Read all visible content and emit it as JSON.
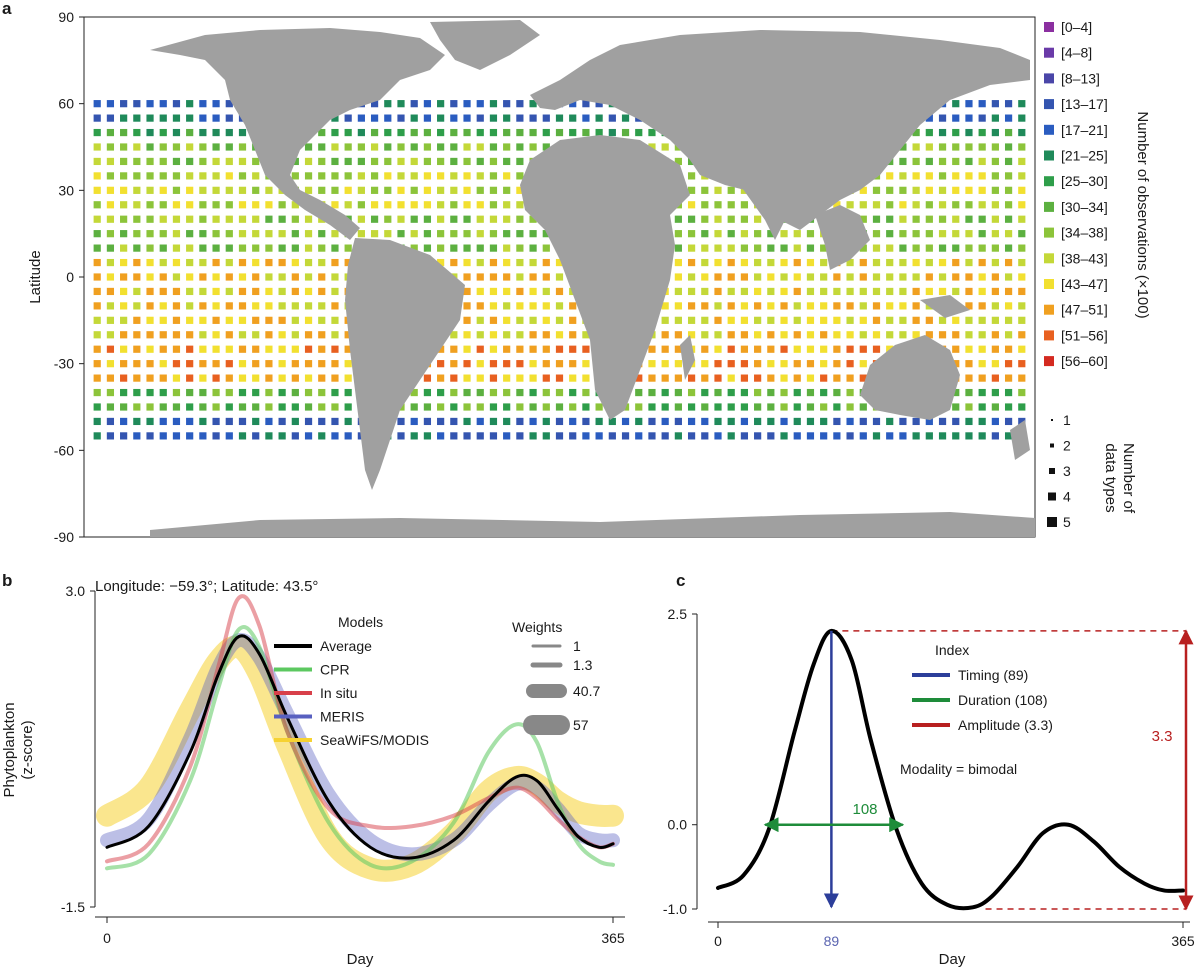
{
  "panel_a": {
    "letter": "a",
    "y_axis_label": "Latitude",
    "lat_ticks": [
      "90",
      "60",
      "30",
      "0",
      "-30",
      "-60",
      "-90"
    ],
    "obs_legend_title": "Number of observations (×100)",
    "obs_bins": [
      {
        "label": "[0–4]",
        "color": "#8b2fa0"
      },
      {
        "label": "[4–8]",
        "color": "#6a3aa8"
      },
      {
        "label": "[8–13]",
        "color": "#4a46a8"
      },
      {
        "label": "[13–17]",
        "color": "#3455b0"
      },
      {
        "label": "[17–21]",
        "color": "#2a5cc0"
      },
      {
        "label": "[21–25]",
        "color": "#1f8a5a"
      },
      {
        "label": "[25–30]",
        "color": "#2e9e4a"
      },
      {
        "label": "[30–34]",
        "color": "#5cb040"
      },
      {
        "label": "[34–38]",
        "color": "#8cc43a"
      },
      {
        "label": "[38–43]",
        "color": "#c4d838"
      },
      {
        "label": "[43–47]",
        "color": "#f2e030"
      },
      {
        "label": "[47–51]",
        "color": "#f0a020"
      },
      {
        "label": "[51–56]",
        "color": "#e86020"
      },
      {
        "label": "[56–60]",
        "color": "#d42a20"
      }
    ],
    "types_legend_title_1": "Number of",
    "types_legend_title_2": "data types",
    "type_counts": [
      "1",
      "2",
      "3",
      "4",
      "5"
    ]
  },
  "chart_data": [
    {
      "panel": "b",
      "type": "line",
      "title": "Longitude: −59.3°; Latitude: 43.5°",
      "xlabel": "Day",
      "ylabel_1": "Phytoplankton",
      "ylabel_2": "(z-score)",
      "xlim": [
        0,
        365
      ],
      "ylim": [
        -1.5,
        3.0
      ],
      "x_ticks": [
        "0",
        "365"
      ],
      "y_ticks": [
        "3.0",
        "-1.5"
      ],
      "legend_models_title": "Models",
      "legend_weights_title": "Weights",
      "weights": [
        "1",
        "1.3",
        "40.7",
        "57"
      ],
      "x": [
        0,
        30,
        60,
        80,
        95,
        110,
        130,
        160,
        190,
        220,
        250,
        275,
        295,
        310,
        325,
        340,
        355,
        365
      ],
      "series": [
        {
          "name": "Average",
          "color": "#000000",
          "width": 3,
          "values": [
            -0.65,
            -0.35,
            0.7,
            1.8,
            2.35,
            2.1,
            1.2,
            0.0,
            -0.65,
            -0.8,
            -0.55,
            0.0,
            0.35,
            0.3,
            -0.1,
            -0.5,
            -0.65,
            -0.6
          ]
        },
        {
          "name": "CPR",
          "color": "#5cc860",
          "width": 4,
          "opacity": 0.55,
          "values": [
            -0.95,
            -0.75,
            0.3,
            1.6,
            2.45,
            2.2,
            1.0,
            -0.3,
            -0.9,
            -0.85,
            -0.3,
            0.7,
            1.1,
            0.85,
            0.0,
            -0.6,
            -0.85,
            -0.9
          ]
        },
        {
          "name": "In situ",
          "color": "#d8404a",
          "width": 4,
          "opacity": 0.5,
          "values": [
            -0.85,
            -0.6,
            0.5,
            1.9,
            2.9,
            2.5,
            1.0,
            -0.1,
            -0.35,
            -0.35,
            -0.2,
            0.05,
            0.2,
            0.05,
            -0.25,
            -0.5,
            -0.65,
            -0.6
          ]
        },
        {
          "name": "MERIS",
          "color": "#5860c0",
          "width": 14,
          "opacity": 0.4,
          "values": [
            -0.55,
            -0.25,
            0.9,
            1.9,
            2.3,
            2.05,
            1.25,
            0.1,
            -0.55,
            -0.75,
            -0.55,
            -0.05,
            0.25,
            0.2,
            -0.1,
            -0.45,
            -0.55,
            -0.55
          ]
        },
        {
          "name": "SeaWiFS/MODIS",
          "color": "#f6d232",
          "width": 22,
          "opacity": 0.55,
          "values": [
            -0.2,
            0.2,
            1.3,
            2.0,
            2.2,
            1.8,
            0.8,
            -0.5,
            -0.95,
            -0.9,
            -0.45,
            0.15,
            0.35,
            0.25,
            0.0,
            -0.15,
            -0.2,
            -0.2
          ]
        }
      ]
    },
    {
      "panel": "c",
      "type": "line",
      "xlabel": "Day",
      "xlim": [
        0,
        365
      ],
      "ylim": [
        -1.0,
        2.5
      ],
      "x_ticks": [
        "0",
        "365"
      ],
      "y_ticks": [
        "2.5",
        "0.0",
        "-1.0"
      ],
      "legend_title": "Index",
      "indices": [
        {
          "name": "Timing (89)",
          "color": "#2c3e9a"
        },
        {
          "name": "Duration (108)",
          "color": "#1e8c3a"
        },
        {
          "name": "Amplitude (3.3)",
          "color": "#b82020"
        }
      ],
      "modality_text": "Modality = bimodal",
      "timing_day": 89,
      "timing_label": "89",
      "duration_start": 37,
      "duration_end": 145,
      "duration_label": "108",
      "amplitude_label": "3.3",
      "peak_value": 2.3,
      "min_value": -1.0,
      "x": [
        0,
        20,
        40,
        60,
        75,
        89,
        105,
        120,
        140,
        160,
        180,
        200,
        215,
        235,
        255,
        275,
        295,
        315,
        335,
        350,
        365
      ],
      "values": [
        -0.75,
        -0.6,
        -0.05,
        1.1,
        1.9,
        2.3,
        1.95,
        1.0,
        -0.05,
        -0.7,
        -0.95,
        -0.98,
        -0.85,
        -0.5,
        -0.1,
        0.0,
        -0.2,
        -0.5,
        -0.7,
        -0.78,
        -0.78
      ]
    }
  ],
  "axes": {
    "panel_b_letter": "b",
    "panel_c_letter": "c"
  }
}
